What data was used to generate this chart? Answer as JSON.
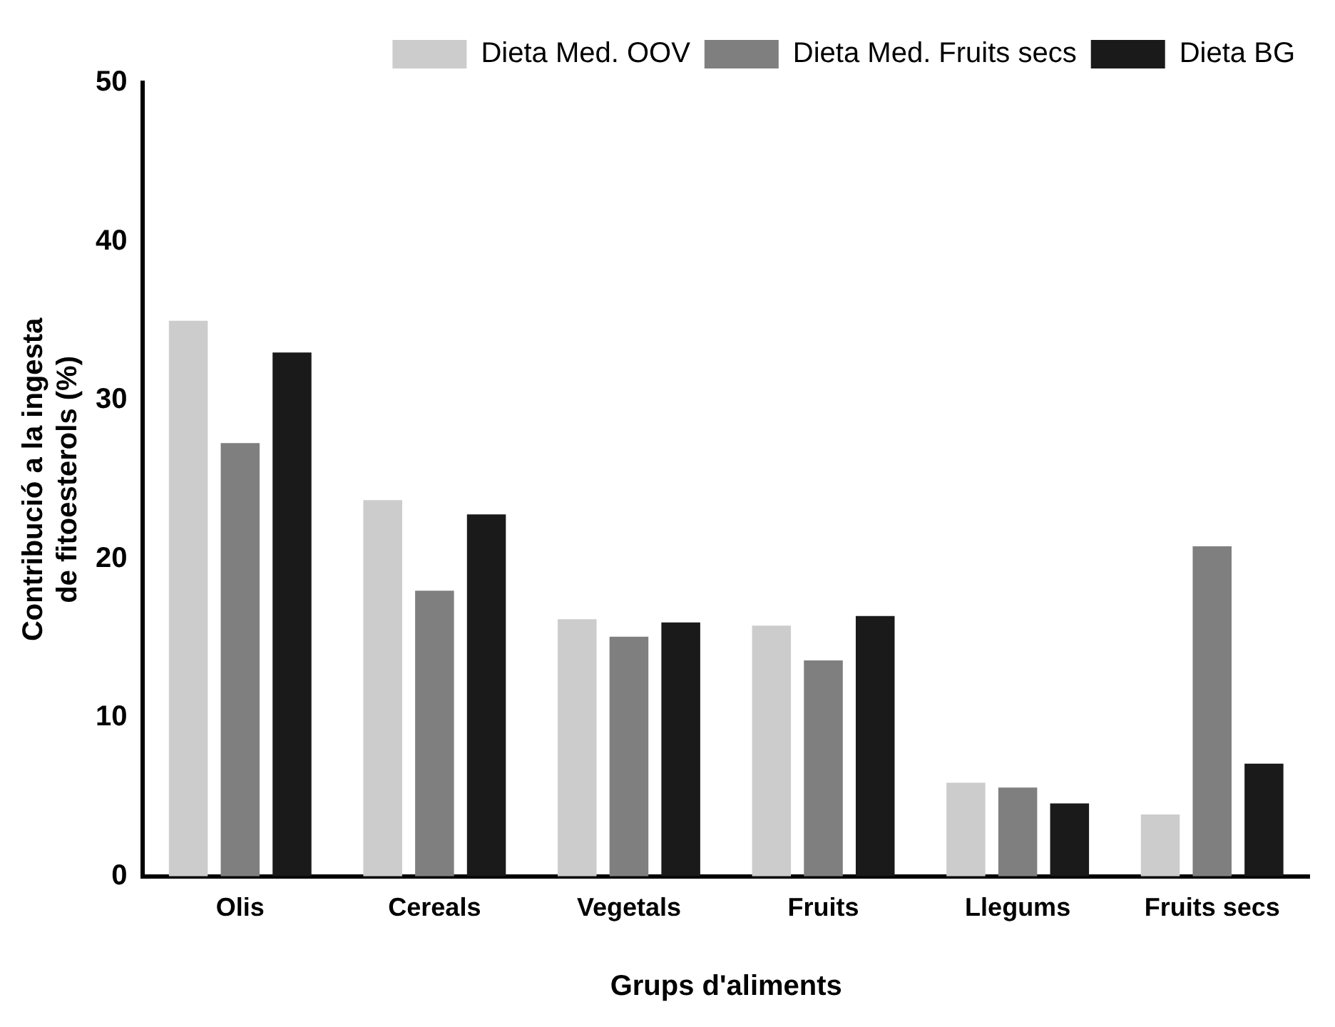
{
  "chart_data": {
    "type": "bar",
    "xlabel": "Grups d'aliments",
    "ylabel": "Contribució a la ingesta\nde fitoesterols (%)",
    "categories": [
      "Olis",
      "Cereals",
      "Vegetals",
      "Fruits",
      "Llegums",
      "Fruits secs"
    ],
    "series": [
      {
        "name": "Dieta Med. OOV",
        "color": "#cccccc",
        "values": [
          35,
          23.7,
          16.2,
          15.8,
          5.9,
          3.9
        ]
      },
      {
        "name": "Dieta Med. Fruits secs",
        "color": "#7f7f7f",
        "values": [
          27.3,
          18,
          15.1,
          13.6,
          5.6,
          20.8
        ]
      },
      {
        "name": "Dieta BG",
        "color": "#1a1a1a",
        "values": [
          33,
          22.8,
          16,
          16.4,
          4.6,
          7.1
        ]
      }
    ],
    "ylim": [
      0,
      50
    ],
    "yticks": [
      0,
      10,
      20,
      30,
      40,
      50
    ],
    "grid": false,
    "legend": "top right"
  }
}
